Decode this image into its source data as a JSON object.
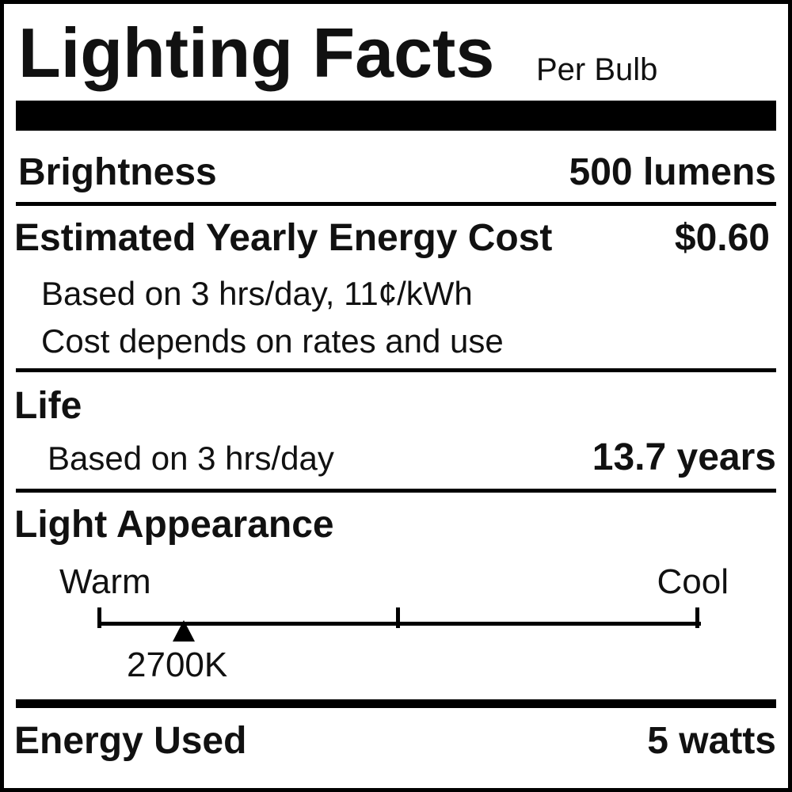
{
  "header": {
    "title": "Lighting Facts",
    "subtitle": "Per Bulb"
  },
  "brightness": {
    "label": "Brightness",
    "value": "500 lumens"
  },
  "energy_cost": {
    "label": "Estimated Yearly Energy Cost",
    "value": "$0.60",
    "note1": "Based on 3 hrs/day, 11¢/kWh",
    "note2": "Cost depends on rates and use"
  },
  "life": {
    "label": "Life",
    "note": "Based on 3 hrs/day",
    "value": "13.7 years"
  },
  "light_appearance": {
    "label": "Light Appearance",
    "warm_label": "Warm",
    "cool_label": "Cool",
    "marker_label": "2700K"
  },
  "energy_used": {
    "label": "Energy Used",
    "value": "5 watts"
  }
}
